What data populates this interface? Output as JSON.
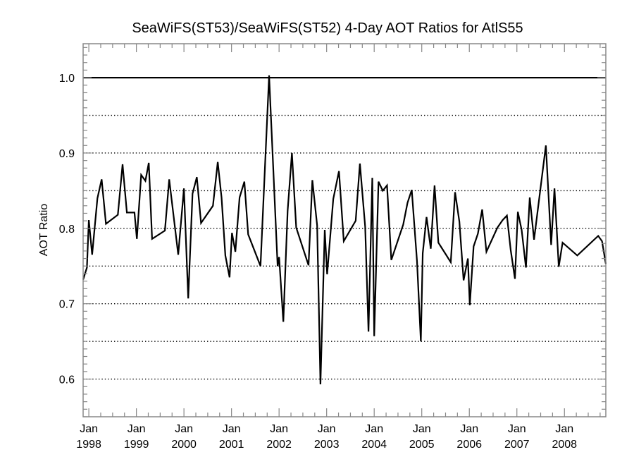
{
  "chart_data": {
    "type": "line",
    "title": "SeaWiFS(ST53)/SeaWiFS(ST52) 4-Day AOT Ratios for AtlS55",
    "xlabel": "",
    "ylabel": "AOT Ratio",
    "xlim": [
      1997.88,
      2008.87
    ],
    "ylim": [
      0.55,
      1.045
    ],
    "grid": "horizontal dotted at 0.05 intervals",
    "reference_line": {
      "y": 1.0,
      "style": "solid"
    },
    "y_ticks": [
      {
        "value": 0.6,
        "label": "0.6"
      },
      {
        "value": 0.7,
        "label": "0.7"
      },
      {
        "value": 0.8,
        "label": "0.8"
      },
      {
        "value": 0.9,
        "label": "0.9"
      },
      {
        "value": 1.0,
        "label": "1.0"
      }
    ],
    "y_gridlines": [
      0.6,
      0.65,
      0.7,
      0.75,
      0.8,
      0.85,
      0.9,
      0.95
    ],
    "x_ticks": [
      {
        "value": 1998,
        "label1": "Jan",
        "label2": "1998"
      },
      {
        "value": 1999,
        "label1": "Jan",
        "label2": "1999"
      },
      {
        "value": 2000,
        "label1": "Jan",
        "label2": "2000"
      },
      {
        "value": 2001,
        "label1": "Jan",
        "label2": "2001"
      },
      {
        "value": 2002,
        "label1": "Jan",
        "label2": "2002"
      },
      {
        "value": 2003,
        "label1": "Jan",
        "label2": "2003"
      },
      {
        "value": 2004,
        "label1": "Jan",
        "label2": "2004"
      },
      {
        "value": 2005,
        "label1": "Jan",
        "label2": "2005"
      },
      {
        "value": 2006,
        "label1": "Jan",
        "label2": "2006"
      },
      {
        "value": 2007,
        "label1": "Jan",
        "label2": "2007"
      },
      {
        "value": 2008,
        "label1": "Jan",
        "label2": "2008"
      }
    ],
    "series": [
      {
        "name": "AOT Ratio",
        "color": "#000000",
        "x": [
          1997.88,
          1997.96,
          1998.0,
          1998.07,
          1998.18,
          1998.27,
          1998.36,
          1998.61,
          1998.71,
          1998.8,
          1998.96,
          1999.01,
          1999.1,
          1999.19,
          1999.26,
          1999.33,
          1999.6,
          1999.69,
          1999.88,
          2000.0,
          2000.09,
          2000.18,
          2000.27,
          2000.36,
          2000.61,
          2000.71,
          2000.79,
          2000.87,
          2000.96,
          2001.01,
          2001.08,
          2001.17,
          2001.27,
          2001.35,
          2001.61,
          2001.79,
          2001.97,
          2002.0,
          2002.09,
          2002.18,
          2002.27,
          2002.36,
          2002.62,
          2002.7,
          2002.8,
          2002.87,
          2002.96,
          2003.01,
          2003.14,
          2003.26,
          2003.36,
          2003.61,
          2003.7,
          2003.81,
          2003.88,
          2003.96,
          2004.0,
          2004.09,
          2004.18,
          2004.27,
          2004.36,
          2004.61,
          2004.7,
          2004.79,
          2004.9,
          2004.98,
          2005.02,
          2005.1,
          2005.19,
          2005.27,
          2005.35,
          2005.61,
          2005.7,
          2005.79,
          2005.88,
          2005.97,
          2006.01,
          2006.09,
          2006.18,
          2006.27,
          2006.36,
          2006.59,
          2006.7,
          2006.79,
          2006.87,
          2006.96,
          2007.02,
          2007.1,
          2007.19,
          2007.27,
          2007.36,
          2007.61,
          2007.72,
          2007.79,
          2007.88,
          2007.96,
          2008.27,
          2008.71,
          2008.79,
          2008.87
        ],
        "y": [
          0.732,
          0.748,
          0.811,
          0.765,
          0.84,
          0.865,
          0.806,
          0.818,
          0.885,
          0.821,
          0.821,
          0.786,
          0.871,
          0.863,
          0.887,
          0.786,
          0.797,
          0.865,
          0.765,
          0.853,
          0.707,
          0.846,
          0.868,
          0.807,
          0.83,
          0.888,
          0.841,
          0.764,
          0.735,
          0.794,
          0.769,
          0.841,
          0.862,
          0.792,
          0.75,
          1.003,
          0.75,
          0.762,
          0.676,
          0.823,
          0.9,
          0.801,
          0.751,
          0.864,
          0.804,
          0.593,
          0.798,
          0.739,
          0.839,
          0.876,
          0.783,
          0.81,
          0.886,
          0.802,
          0.663,
          0.867,
          0.657,
          0.862,
          0.85,
          0.857,
          0.758,
          0.805,
          0.834,
          0.851,
          0.756,
          0.65,
          0.767,
          0.815,
          0.773,
          0.857,
          0.781,
          0.755,
          0.848,
          0.809,
          0.731,
          0.76,
          0.698,
          0.776,
          0.793,
          0.825,
          0.769,
          0.801,
          0.811,
          0.817,
          0.771,
          0.733,
          0.822,
          0.798,
          0.748,
          0.841,
          0.785,
          0.91,
          0.778,
          0.853,
          0.749,
          0.781,
          0.764,
          0.79,
          0.783,
          0.753
        ]
      }
    ]
  }
}
